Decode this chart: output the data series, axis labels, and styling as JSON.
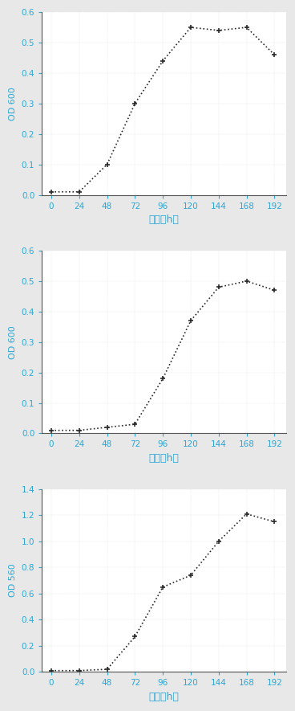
{
  "charts": [
    {
      "x": [
        0,
        24,
        48,
        72,
        96,
        120,
        144,
        168,
        192
      ],
      "y": [
        0.01,
        0.01,
        0.1,
        0.3,
        0.44,
        0.55,
        0.54,
        0.55,
        0.46
      ],
      "ylabel": "OD∞∞∞",
      "ylabel_chars": [
        "O",
        "D",
        "∞",
        "∞",
        "∞"
      ],
      "ylabel_display": "OD 600",
      "ylim": [
        0,
        0.6
      ],
      "yticks": [
        0,
        0.1,
        0.2,
        0.3,
        0.4,
        0.5,
        0.6
      ],
      "xlabel": "时间（h）"
    },
    {
      "x": [
        0,
        24,
        48,
        72,
        96,
        120,
        144,
        168,
        192
      ],
      "y": [
        0.01,
        0.01,
        0.02,
        0.03,
        0.18,
        0.37,
        0.48,
        0.5,
        0.47
      ],
      "ylabel_display": "OD 600",
      "ylim": [
        0,
        0.6
      ],
      "yticks": [
        0,
        0.1,
        0.2,
        0.3,
        0.4,
        0.5,
        0.6
      ],
      "xlabel": "时间（h）"
    },
    {
      "x": [
        0,
        24,
        48,
        72,
        96,
        120,
        144,
        168,
        192
      ],
      "y": [
        0.01,
        0.01,
        0.02,
        0.27,
        0.65,
        0.74,
        1.0,
        1.21,
        1.15
      ],
      "ylabel_display": "OD 560",
      "ylim": [
        0,
        1.4
      ],
      "yticks": [
        0.0,
        0.2,
        0.4,
        0.6,
        0.8,
        1.0,
        1.2,
        1.4
      ],
      "xlabel": "时间（h）"
    }
  ],
  "line_color": "#2a2a2a",
  "marker": "+",
  "markersize": 5,
  "markeredgewidth": 1.2,
  "tick_color": "#29a8d8",
  "label_color": "#29a8d8",
  "bg_color": "#ffffff",
  "fig_bg_color": "#e8e8e8",
  "xticks": [
    0,
    24,
    48,
    72,
    96,
    120,
    144,
    168,
    192
  ],
  "line_style": ":",
  "linewidth": 1.2
}
